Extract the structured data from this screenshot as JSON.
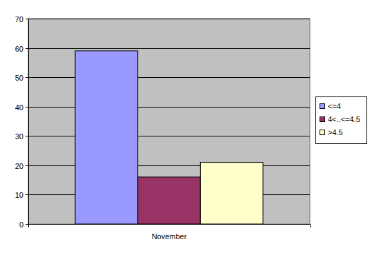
{
  "chart_data": {
    "type": "bar",
    "categories": [
      "November"
    ],
    "series": [
      {
        "name": "<=4",
        "color": "#9999ff",
        "values": [
          59
        ]
      },
      {
        "name": "4<..<=4.5",
        "color": "#993366",
        "values": [
          16
        ]
      },
      {
        "name": ">4.5",
        "color": "#ffffcc",
        "values": [
          21
        ]
      }
    ],
    "ylim": [
      0,
      70
    ],
    "yticks": [
      0,
      10,
      20,
      30,
      40,
      50,
      60,
      70
    ],
    "grid": true,
    "legend": "right"
  }
}
